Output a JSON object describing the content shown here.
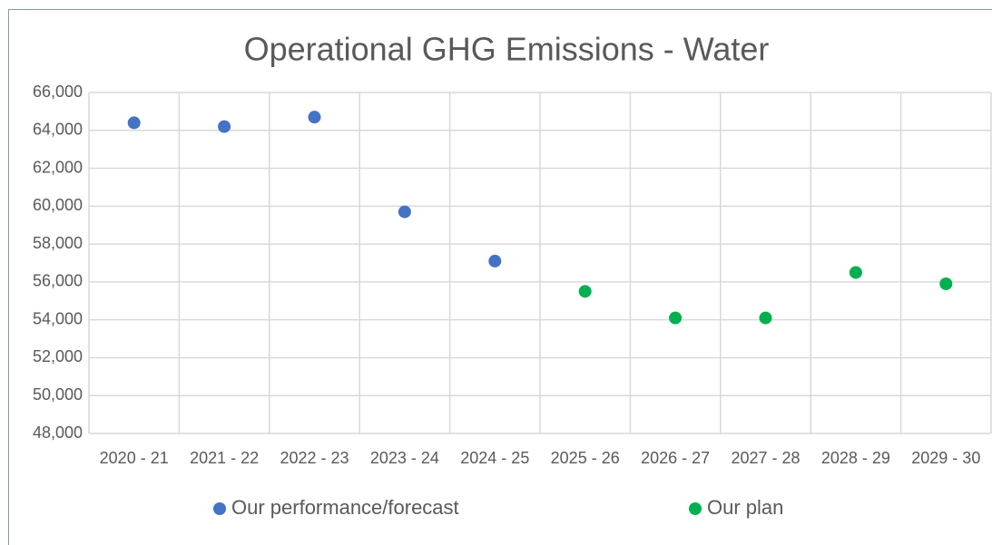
{
  "chart_data": {
    "type": "scatter",
    "title": "Operational GHG Emissions - Water",
    "categories": [
      "2020 - 21",
      "2021 - 22",
      "2022 - 23",
      "2023 - 24",
      "2024 - 25",
      "2025 - 26",
      "2026 - 27",
      "2027 - 28",
      "2028 - 29",
      "2029 - 30"
    ],
    "series": [
      {
        "name": "Our performance/forecast",
        "color": "#4472c4",
        "values": [
          64400,
          64200,
          64700,
          59700,
          57100,
          null,
          null,
          null,
          null,
          null
        ]
      },
      {
        "name": "Our plan",
        "color": "#00b050",
        "values": [
          null,
          null,
          null,
          null,
          null,
          55500,
          54100,
          54100,
          56500,
          55900
        ]
      }
    ],
    "ylim": [
      48000,
      66000
    ],
    "yticks": [
      {
        "value": 48000,
        "label": "48,000"
      },
      {
        "value": 50000,
        "label": "50,000"
      },
      {
        "value": 52000,
        "label": "52,000"
      },
      {
        "value": 54000,
        "label": "54,000"
      },
      {
        "value": 56000,
        "label": "56,000"
      },
      {
        "value": 58000,
        "label": "58,000"
      },
      {
        "value": 60000,
        "label": "60,000"
      },
      {
        "value": 62000,
        "label": "62,000"
      },
      {
        "value": 64000,
        "label": "64,000"
      },
      {
        "value": 66000,
        "label": "66,000"
      }
    ],
    "grid": true,
    "legend": "bottom"
  }
}
